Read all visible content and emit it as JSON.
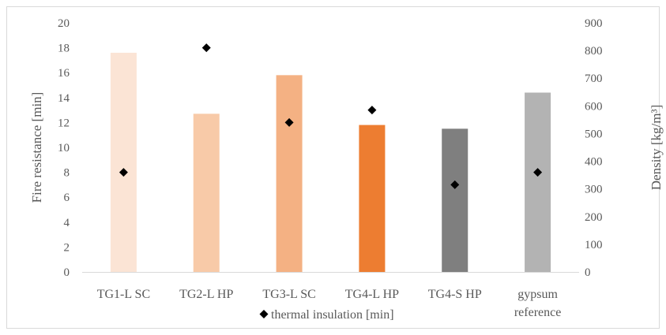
{
  "chart_data": {
    "type": "bar",
    "categories": [
      [
        "TG1-L SC"
      ],
      [
        "TG2-L HP"
      ],
      [
        "TG3-L SC"
      ],
      [
        "TG4-L HP"
      ],
      [
        "TG4-S HP"
      ],
      [
        "gypsum",
        "reference"
      ]
    ],
    "series": [
      {
        "axis": "left",
        "marker": "bar",
        "values": [
          17.6,
          12.7,
          15.8,
          11.8,
          11.5,
          14.4
        ],
        "colors": [
          "#fbe4d5",
          "#f8caa8",
          "#f4b183",
          "#ed7d31",
          "#7f7f7f",
          "#b3b3b3"
        ]
      },
      {
        "name": "thermal insulation [min]",
        "axis": "right",
        "marker": "diamond",
        "values": [
          360,
          810,
          540,
          585,
          315,
          360
        ],
        "color": "#000000"
      }
    ],
    "ylabel": "Fire resistance [min]",
    "ylim": [
      0,
      20
    ],
    "yticks": [
      0,
      2,
      4,
      6,
      8,
      10,
      12,
      14,
      16,
      18,
      20
    ],
    "y2label": "Density [kg/m³]",
    "y2lim": [
      0,
      900
    ],
    "y2ticks": [
      0,
      100,
      200,
      300,
      400,
      500,
      600,
      700,
      800,
      900
    ],
    "grid": false,
    "legend": "bottom"
  }
}
